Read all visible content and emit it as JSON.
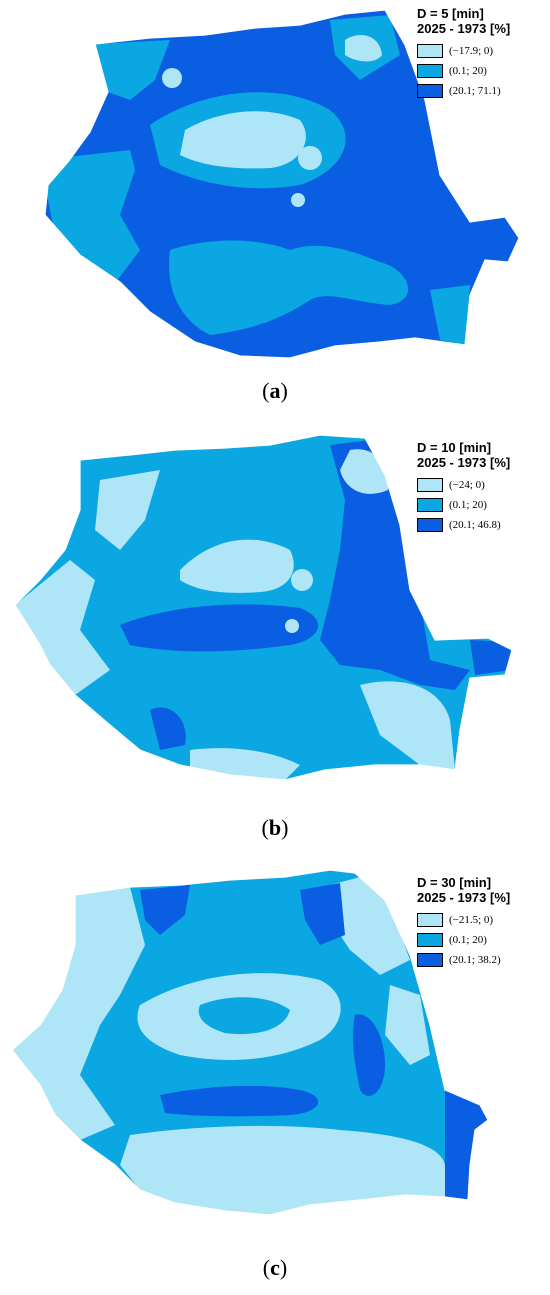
{
  "colors": {
    "light": "#aee6f8",
    "medium": "#0aa7e2",
    "dark": "#0a5ee2",
    "outline": "#ffffff"
  },
  "panels": [
    {
      "id": "a",
      "legend_title_line1": "D = 5 [min]",
      "legend_title_line2": "2025 - 1973 [%]",
      "legend": [
        "(−17.9; 0)",
        "(0.1; 20)",
        "(20.1; 71.1)"
      ],
      "caption_open": "(",
      "caption_letter": "a",
      "caption_close": ")"
    },
    {
      "id": "b",
      "legend_title_line1": "D = 10 [min]",
      "legend_title_line2": "2025 - 1973 [%]",
      "legend": [
        "(−24; 0)",
        "(0.1; 20)",
        "(20.1; 46.8)"
      ],
      "caption_open": "(",
      "caption_letter": "b",
      "caption_close": ")"
    },
    {
      "id": "c",
      "legend_title_line1": "D = 30 [min]",
      "legend_title_line2": "2025 - 1973 [%]",
      "legend": [
        "(−21.5; 0)",
        "(0.1; 20)",
        "(20.1; 38.2)"
      ],
      "caption_open": "(",
      "caption_letter": "c",
      "caption_close": ")"
    }
  ]
}
